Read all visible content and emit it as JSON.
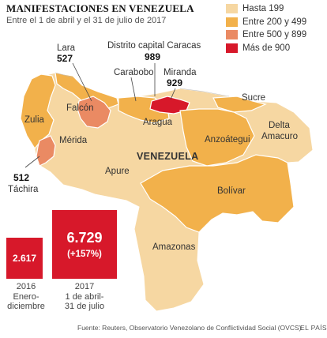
{
  "title": "MANIFESTACIONES EN VENEZUELA",
  "subtitle": "Entre el 1 de abril y el 31 de julio de 2017",
  "legend": [
    {
      "label": "Hasta 199",
      "color": "#f6d7a2"
    },
    {
      "label": "Entre 200 y 499",
      "color": "#f2b14b"
    },
    {
      "label": "Entre 500 y 899",
      "color": "#ea8a63"
    },
    {
      "label": "Más de 900",
      "color": "#d7182a"
    }
  ],
  "map": {
    "country_label": "VENEZUELA",
    "states": {
      "lara": {
        "name": "Lara",
        "value": "527"
      },
      "distrito_capital": {
        "name": "Distrito capital Caracas",
        "value": "989"
      },
      "miranda": {
        "name": "Miranda",
        "value": "929"
      },
      "tachira": {
        "name": "Táchira",
        "value": "512"
      },
      "falcon": {
        "name": "Falcón"
      },
      "carabobo": {
        "name": "Carabobo"
      },
      "aragua": {
        "name": "Aragua"
      },
      "sucre": {
        "name": "Sucre"
      },
      "zulia": {
        "name": "Zulia"
      },
      "merida": {
        "name": "Mérida"
      },
      "delta_amacuro": {
        "name": "Delta Amacuro"
      },
      "anzoategui": {
        "name": "Anzoátegui"
      },
      "apure": {
        "name": "Apure"
      },
      "bolivar": {
        "name": "Bolívar"
      },
      "amazonas": {
        "name": "Amazonas"
      }
    }
  },
  "comparison": {
    "y2016": {
      "value": "2.617",
      "year": "2016",
      "period": "Enero-diciembre"
    },
    "y2017": {
      "value": "6.729",
      "change": "(+157%)",
      "year": "2017",
      "period_line1": "1 de abril-",
      "period_line2": "31 de julio"
    }
  },
  "footer": {
    "source": "Fuente: Reuters, Observatorio Venezolano de Conflictividad Social (OVCS).",
    "brand": "EL PAÍS"
  }
}
